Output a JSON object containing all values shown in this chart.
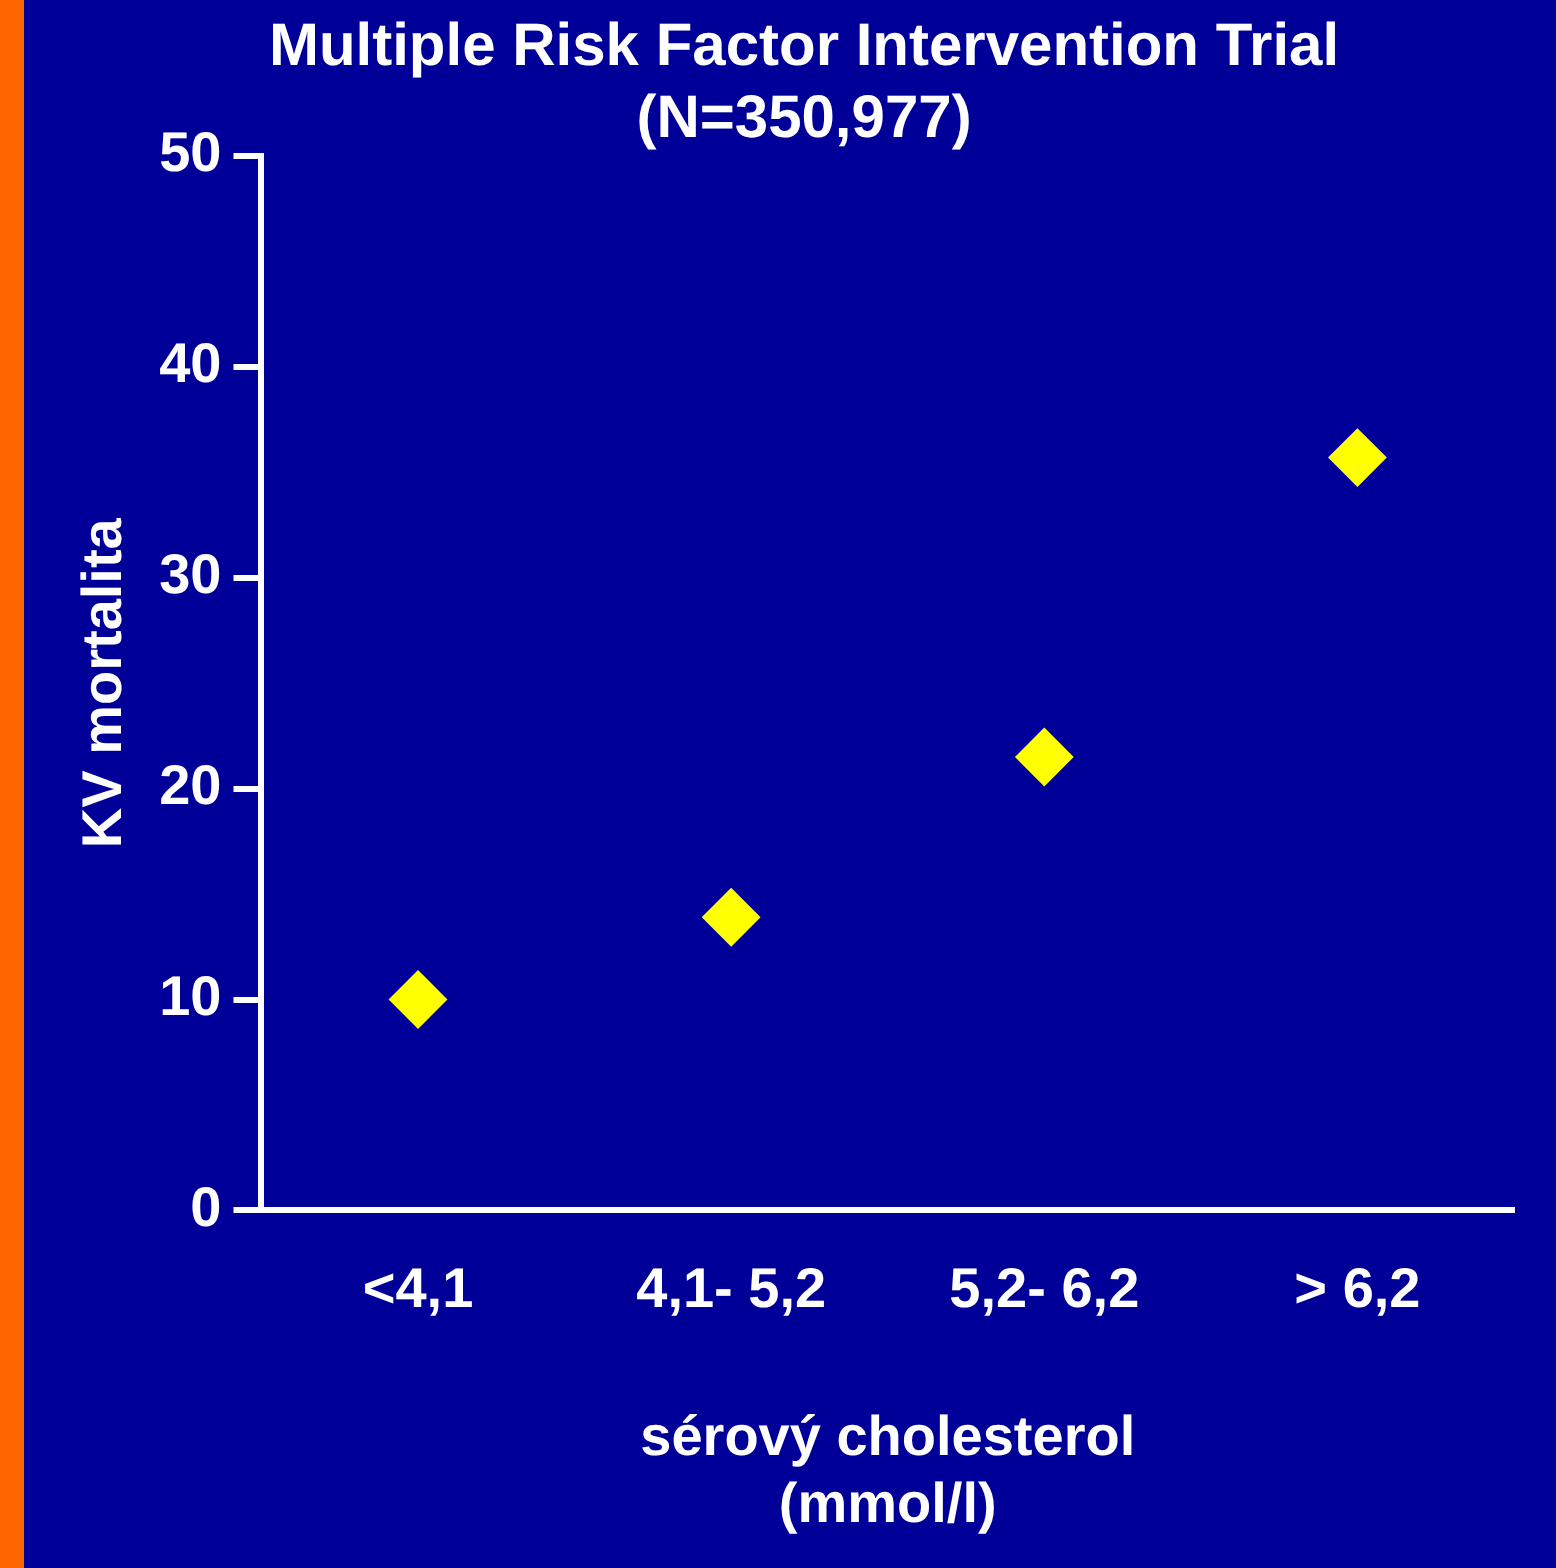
{
  "chart_data": {
    "type": "scatter",
    "title": "Multiple Risk Factor Intervention Trial (N=350,977)",
    "xlabel": "sérový cholesterol (mmol/l)",
    "ylabel": "KV mortalita",
    "categories": [
      "<4,1",
      "4,1- 5,2",
      "5,2- 6,2",
      "> 6,2"
    ],
    "series": [
      {
        "color": "#ffff00",
        "values": [
          10,
          13.9,
          21.5,
          35.7
        ]
      }
    ],
    "ylim": [
      0,
      50
    ],
    "yticks": [
      0,
      10,
      20,
      30,
      40,
      50
    ],
    "grid": false,
    "legend": false,
    "marker": "diamond"
  }
}
